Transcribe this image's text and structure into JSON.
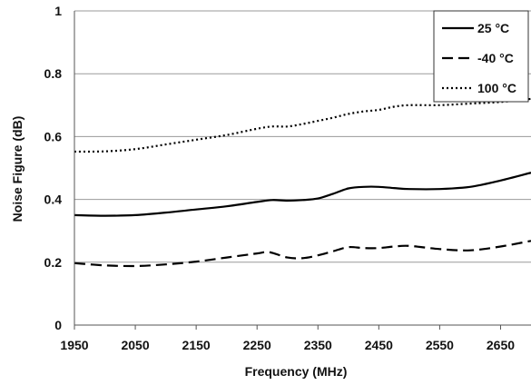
{
  "chart_data": {
    "type": "line",
    "title": "",
    "xlabel": "Frequency (MHz)",
    "ylabel": "Noise Figure (dB)",
    "xlim": [
      1950,
      2700
    ],
    "ylim": [
      0,
      1
    ],
    "x_ticks": [
      "1950",
      "2050",
      "2150",
      "2250",
      "2350",
      "2450",
      "2550",
      "2650"
    ],
    "y_ticks": [
      "0",
      "0.2",
      "0.4",
      "0.6",
      "0.8",
      "1"
    ],
    "grid": "horizontal",
    "legend_position": "top-right",
    "series": [
      {
        "name": "25 °C",
        "style": "solid",
        "color": "#000000",
        "x": [
          1950,
          2000,
          2050,
          2100,
          2150,
          2200,
          2250,
          2275,
          2300,
          2325,
          2350,
          2375,
          2400,
          2425,
          2450,
          2475,
          2500,
          2550,
          2600,
          2650,
          2700
        ],
        "y": [
          0.35,
          0.348,
          0.35,
          0.358,
          0.368,
          0.378,
          0.392,
          0.398,
          0.396,
          0.398,
          0.403,
          0.418,
          0.435,
          0.44,
          0.44,
          0.436,
          0.433,
          0.433,
          0.44,
          0.46,
          0.485
        ]
      },
      {
        "name": "-40 °C",
        "style": "dashed",
        "color": "#000000",
        "x": [
          1950,
          2000,
          2050,
          2100,
          2150,
          2200,
          2250,
          2270,
          2300,
          2325,
          2350,
          2375,
          2400,
          2425,
          2450,
          2475,
          2500,
          2550,
          2600,
          2650,
          2700
        ],
        "y": [
          0.197,
          0.19,
          0.188,
          0.193,
          0.202,
          0.215,
          0.228,
          0.232,
          0.215,
          0.213,
          0.222,
          0.235,
          0.248,
          0.245,
          0.245,
          0.25,
          0.252,
          0.242,
          0.238,
          0.25,
          0.268
        ]
      },
      {
        "name": "100 °C",
        "style": "dotted",
        "color": "#000000",
        "x": [
          1950,
          2000,
          2050,
          2100,
          2150,
          2200,
          2250,
          2275,
          2300,
          2325,
          2350,
          2375,
          2400,
          2425,
          2450,
          2475,
          2500,
          2550,
          2600,
          2650,
          2700
        ],
        "y": [
          0.552,
          0.553,
          0.56,
          0.575,
          0.59,
          0.605,
          0.625,
          0.632,
          0.632,
          0.64,
          0.65,
          0.66,
          0.672,
          0.68,
          0.685,
          0.695,
          0.7,
          0.7,
          0.705,
          0.71,
          0.72
        ]
      }
    ]
  }
}
